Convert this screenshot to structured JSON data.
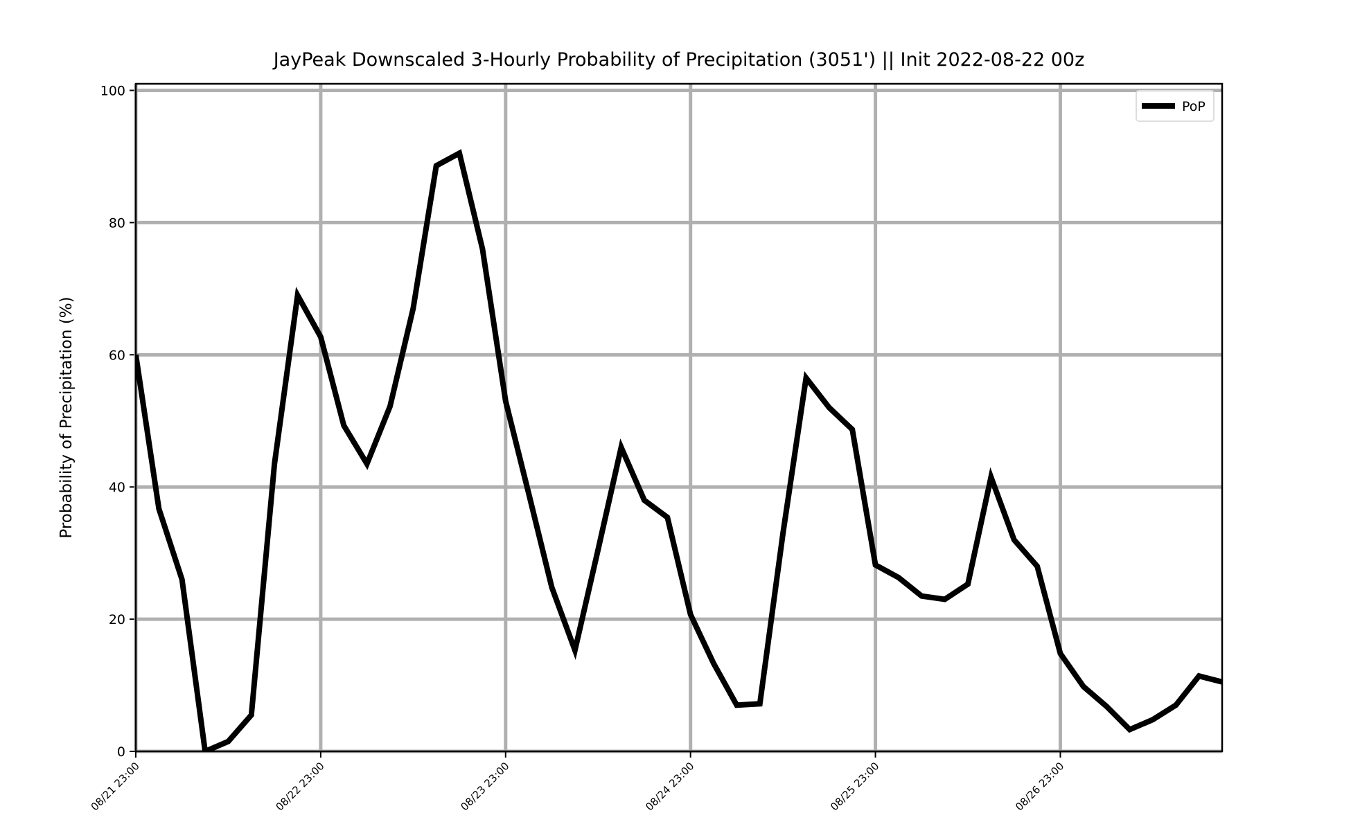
{
  "chart_data": {
    "type": "line",
    "title": "JayPeak Downscaled 3-Hourly Probability of Precipitation (3051') || Init 2022-08-22 00z",
    "ylabel": "Probability of Precipitation (%)",
    "x": [
      "08/21 23:00",
      "08/22 02:00",
      "08/22 05:00",
      "08/22 08:00",
      "08/22 11:00",
      "08/22 14:00",
      "08/22 17:00",
      "08/22 20:00",
      "08/22 23:00",
      "08/23 02:00",
      "08/23 05:00",
      "08/23 08:00",
      "08/23 11:00",
      "08/23 14:00",
      "08/23 17:00",
      "08/23 20:00",
      "08/23 23:00",
      "08/24 02:00",
      "08/24 05:00",
      "08/24 08:00",
      "08/24 11:00",
      "08/24 14:00",
      "08/24 17:00",
      "08/24 20:00",
      "08/24 23:00",
      "08/25 02:00",
      "08/25 05:00",
      "08/25 08:00",
      "08/25 11:00",
      "08/25 14:00",
      "08/25 17:00",
      "08/25 20:00",
      "08/25 23:00",
      "08/26 02:00",
      "08/26 05:00",
      "08/26 08:00",
      "08/26 11:00",
      "08/26 14:00",
      "08/26 17:00",
      "08/26 20:00",
      "08/26 23:00",
      "08/27 02:00",
      "08/27 05:00",
      "08/27 08:00",
      "08/27 11:00",
      "08/27 14:00",
      "08/27 17:00",
      "08/27 20:00"
    ],
    "series": [
      {
        "name": "PoP",
        "color": "#000000",
        "values": [
          60,
          36.7,
          26,
          0,
          1.5,
          5.5,
          43.5,
          69,
          62.7,
          49.3,
          43.5,
          52.2,
          67,
          88.6,
          90.5,
          76,
          53,
          39,
          24.8,
          15.3,
          30.5,
          46,
          38,
          35.4,
          20.7,
          13.3,
          7,
          7.2,
          33,
          56.5,
          52,
          48.7,
          28.2,
          26.3,
          23.5,
          23,
          25.3,
          41.5,
          32,
          28,
          14.8,
          9.8,
          6.8,
          3.3,
          4.8,
          7,
          11.4,
          10.5
        ]
      }
    ],
    "xlim": [
      "08/21 23:00",
      "08/27 20:00"
    ],
    "xticks": [
      "08/21 23:00",
      "08/22 23:00",
      "08/23 23:00",
      "08/24 23:00",
      "08/25 23:00",
      "08/26 23:00"
    ],
    "ylim": [
      0,
      101
    ],
    "yticks": [
      0,
      20,
      40,
      60,
      80,
      100
    ],
    "grid": true,
    "legend": "upper right"
  }
}
